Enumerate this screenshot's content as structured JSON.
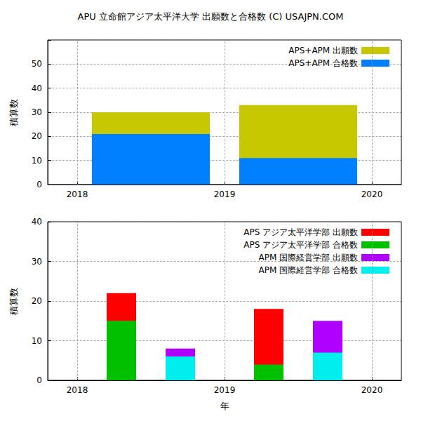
{
  "chart_data": [
    {
      "type": "bar",
      "title": "APU 立命館アジア太平洋大学 出願数と合格数 (C) USAJPN.COM",
      "y_label": "積算数",
      "xlim": [
        2017.8,
        2020.2
      ],
      "xticks": [
        2018,
        2019,
        2020
      ],
      "ylim": [
        0,
        60
      ],
      "yticks": [
        0,
        10,
        20,
        30,
        40,
        50
      ],
      "grid": true,
      "legend": "upper right",
      "series": [
        {
          "name": "APS+APM 出願数",
          "color": "#c8c800",
          "x": [
            2018.5,
            2019.5
          ],
          "values": [
            30,
            33
          ]
        },
        {
          "name": "APS+APM 合格数",
          "color": "#0080ff",
          "x": [
            2018.5,
            2019.5
          ],
          "values": [
            21,
            11
          ]
        }
      ]
    },
    {
      "type": "bar",
      "y_label": "積算数",
      "x_label": "年",
      "xlim": [
        2017.8,
        2020.2
      ],
      "xticks": [
        2018,
        2019,
        2020
      ],
      "ylim": [
        0,
        40
      ],
      "yticks": [
        0,
        10,
        20,
        30,
        40
      ],
      "grid": true,
      "legend": "upper right",
      "series": [
        {
          "name": "APS アジア太平洋学部 出願数",
          "color": "#ff0000",
          "x": [
            2018.3,
            2019.3
          ],
          "values": [
            22,
            18
          ]
        },
        {
          "name": "APS アジア太平洋学部 合格数",
          "color": "#00c000",
          "x": [
            2018.3,
            2019.3
          ],
          "values": [
            15,
            4
          ]
        },
        {
          "name": "APM 国際経営学部 出願数",
          "color": "#b000ff",
          "x": [
            2018.7,
            2019.7
          ],
          "values": [
            8,
            15
          ]
        },
        {
          "name": "APM 国際経営学部 合格数",
          "color": "#00eeee",
          "x": [
            2018.7,
            2019.7
          ],
          "values": [
            6,
            7
          ]
        }
      ]
    }
  ]
}
